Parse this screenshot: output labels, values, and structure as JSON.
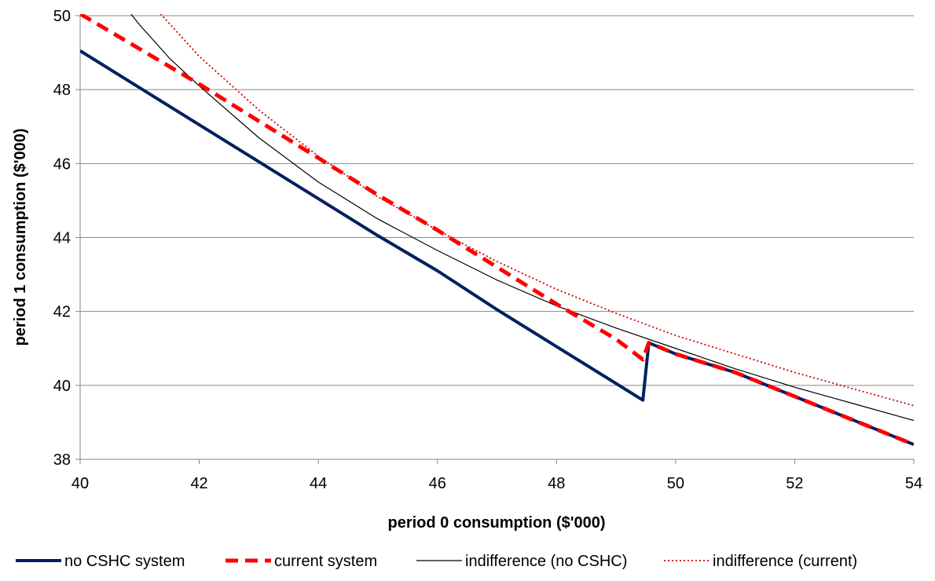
{
  "chart_data": {
    "type": "line",
    "xlabel": "period 0 consumption ($'000)",
    "ylabel": "period 1 consumption ($'000)",
    "xlim": [
      40,
      54
    ],
    "ylim": [
      38,
      50
    ],
    "xticks": [
      40,
      42,
      44,
      46,
      48,
      50,
      52,
      54
    ],
    "yticks": [
      38,
      40,
      42,
      44,
      46,
      48,
      50
    ],
    "xtick_labels": [
      "40",
      "42",
      "44",
      "46",
      "48",
      "50",
      "52",
      "54"
    ],
    "ytick_labels": [
      "38",
      "40",
      "42",
      "44",
      "46",
      "48",
      "50"
    ],
    "grid": "horizontal",
    "legend_position": "bottom",
    "series": [
      {
        "name": "no CSHC system",
        "color": "#002060",
        "style": "solid-thick",
        "points": [
          [
            40,
            49.05
          ],
          [
            41,
            48.05
          ],
          [
            42,
            47.05
          ],
          [
            43,
            46.05
          ],
          [
            44,
            45.05
          ],
          [
            45,
            44.05
          ],
          [
            46,
            43.1
          ],
          [
            47,
            42.05
          ],
          [
            48,
            41.05
          ],
          [
            49,
            40.05
          ],
          [
            49.45,
            39.6
          ],
          [
            49.55,
            41.15
          ],
          [
            50,
            40.85
          ],
          [
            51,
            40.35
          ],
          [
            52,
            39.7
          ],
          [
            53,
            39.05
          ],
          [
            54,
            38.4
          ]
        ]
      },
      {
        "name": "current system",
        "color": "#ff0000",
        "style": "dashed-thick",
        "points": [
          [
            40,
            50.05
          ],
          [
            41,
            49.1
          ],
          [
            42,
            48.15
          ],
          [
            43,
            47.15
          ],
          [
            44,
            46.15
          ],
          [
            45,
            45.15
          ],
          [
            46,
            44.2
          ],
          [
            47,
            43.2
          ],
          [
            48,
            42.2
          ],
          [
            49,
            41.25
          ],
          [
            49.45,
            40.7
          ],
          [
            49.55,
            41.15
          ],
          [
            50,
            40.85
          ],
          [
            51,
            40.35
          ],
          [
            52,
            39.7
          ],
          [
            53,
            39.05
          ],
          [
            54,
            38.4
          ]
        ]
      },
      {
        "name": "indifference (no CSHC)",
        "color": "#000000",
        "style": "solid-thin",
        "points": [
          [
            40.85,
            50.05
          ],
          [
            41,
            49.75
          ],
          [
            41.5,
            48.85
          ],
          [
            42,
            48.1
          ],
          [
            43,
            46.7
          ],
          [
            44,
            45.5
          ],
          [
            45,
            44.5
          ],
          [
            46,
            43.65
          ],
          [
            47,
            42.85
          ],
          [
            48,
            42.15
          ],
          [
            49,
            41.55
          ],
          [
            50,
            41.0
          ],
          [
            51,
            40.45
          ],
          [
            52,
            39.95
          ],
          [
            53,
            39.5
          ],
          [
            54,
            39.05
          ]
        ]
      },
      {
        "name": "indifference (current)",
        "color": "#cc0000",
        "style": "dotted",
        "points": [
          [
            41.35,
            50.05
          ],
          [
            42,
            48.9
          ],
          [
            43,
            47.45
          ],
          [
            44,
            46.2
          ],
          [
            45,
            45.1
          ],
          [
            46,
            44.2
          ],
          [
            47,
            43.35
          ],
          [
            48,
            42.6
          ],
          [
            49,
            41.95
          ],
          [
            50,
            41.35
          ],
          [
            51,
            40.85
          ],
          [
            52,
            40.35
          ],
          [
            53,
            39.9
          ],
          [
            54,
            39.45
          ]
        ]
      }
    ]
  }
}
